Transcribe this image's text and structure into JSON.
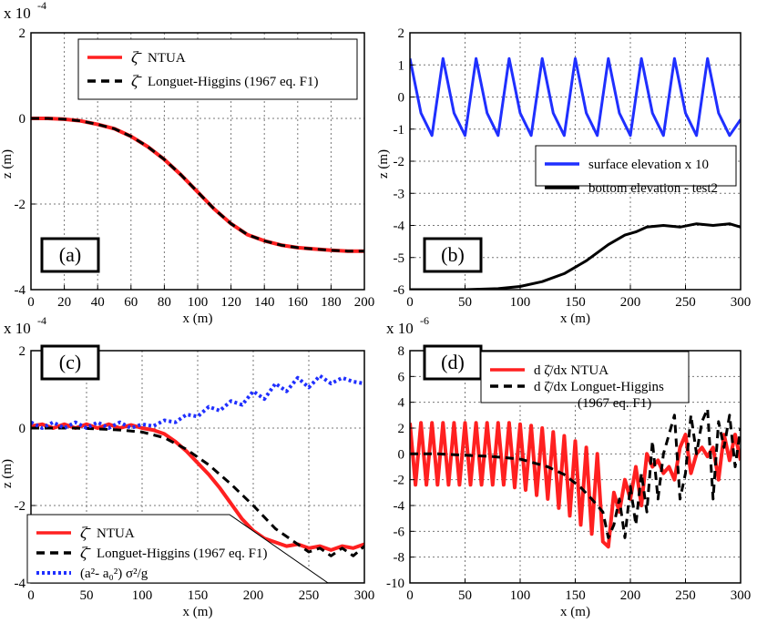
{
  "chart_data": [
    {
      "id": "a",
      "type": "line",
      "panel_label": "(a)",
      "xlabel": "x (m)",
      "ylabel": "z (m)",
      "scale_label": "x 10",
      "scale_exp": "-4",
      "xlim": [
        0,
        200
      ],
      "ylim": [
        -4,
        2
      ],
      "xticks": [
        0,
        20,
        40,
        60,
        80,
        100,
        120,
        140,
        160,
        180,
        200
      ],
      "yticks": [
        -4,
        -2,
        0,
        2
      ],
      "grid": true,
      "legend_position": "top-right",
      "legend": [
        {
          "sym": "ζ̄",
          "text": "NTUA",
          "color": "#ff2020",
          "style": "solid"
        },
        {
          "sym": "ζ̄",
          "text": "Longuet-Higgins (1967 eq. F1)",
          "color": "#000000",
          "style": "dashed"
        }
      ],
      "series": [
        {
          "name": "ζ̄ NTUA",
          "color": "#ff2020",
          "dash": "",
          "width": 4,
          "x": [
            0,
            10,
            20,
            30,
            40,
            50,
            60,
            70,
            80,
            90,
            100,
            110,
            120,
            130,
            140,
            150,
            160,
            170,
            180,
            190,
            200
          ],
          "y": [
            0,
            0,
            -0.02,
            -0.06,
            -0.14,
            -0.24,
            -0.42,
            -0.66,
            -0.96,
            -1.32,
            -1.72,
            -2.12,
            -2.46,
            -2.72,
            -2.86,
            -2.96,
            -3.02,
            -3.05,
            -3.08,
            -3.1,
            -3.1
          ]
        },
        {
          "name": "ζ̄ Longuet-Higgins (1967 eq. F1)",
          "color": "#000000",
          "dash": "9,6",
          "width": 3,
          "x": [
            0,
            10,
            20,
            30,
            40,
            50,
            60,
            70,
            80,
            90,
            100,
            110,
            120,
            130,
            140,
            150,
            160,
            170,
            180,
            190,
            200
          ],
          "y": [
            0,
            0,
            -0.02,
            -0.06,
            -0.14,
            -0.24,
            -0.42,
            -0.66,
            -0.96,
            -1.32,
            -1.72,
            -2.12,
            -2.46,
            -2.72,
            -2.86,
            -2.96,
            -3.02,
            -3.05,
            -3.08,
            -3.1,
            -3.1
          ]
        }
      ]
    },
    {
      "id": "b",
      "type": "line",
      "panel_label": "(b)",
      "xlabel": "x (m)",
      "ylabel": "z (m)",
      "xlim": [
        0,
        300
      ],
      "ylim": [
        -6,
        2
      ],
      "xticks": [
        0,
        50,
        100,
        150,
        200,
        250,
        300
      ],
      "yticks": [
        -6,
        -5,
        -4,
        -3,
        -2,
        -1,
        0,
        1,
        2
      ],
      "grid": true,
      "legend_position": "middle-right",
      "legend": [
        {
          "sym": "",
          "text": "surface elevation x 10",
          "color": "#1f2fff",
          "style": "solid"
        },
        {
          "sym": "",
          "text": "bottom elevation - test2",
          "color": "#000000",
          "style": "solid"
        }
      ],
      "series": [
        {
          "name": "surface elevation x 10",
          "color": "#1f2fff",
          "dash": "",
          "width": 3,
          "x": [
            0,
            10,
            20,
            30,
            40,
            50,
            60,
            70,
            80,
            90,
            100,
            110,
            120,
            130,
            140,
            150,
            160,
            170,
            180,
            190,
            200,
            210,
            220,
            230,
            240,
            250,
            260,
            270,
            280,
            290,
            300
          ],
          "y": [
            1.2,
            -0.5,
            -1.2,
            1.2,
            -0.5,
            -1.2,
            1.2,
            -0.5,
            -1.2,
            1.2,
            -0.5,
            -1.2,
            1.2,
            -0.5,
            -1.2,
            1.2,
            -0.5,
            -1.2,
            1.2,
            -0.5,
            -1.2,
            1.2,
            -0.5,
            -1.2,
            1.2,
            -0.5,
            -1.2,
            1.2,
            -0.5,
            -1.2,
            -0.7
          ]
        },
        {
          "name": "bottom elevation - test2",
          "color": "#000000",
          "dash": "",
          "width": 3,
          "x": [
            0,
            50,
            80,
            100,
            120,
            140,
            160,
            180,
            195,
            205,
            215,
            230,
            245,
            260,
            275,
            290,
            300
          ],
          "y": [
            -6,
            -6,
            -5.97,
            -5.9,
            -5.75,
            -5.5,
            -5.1,
            -4.6,
            -4.3,
            -4.2,
            -4.05,
            -4.0,
            -4.05,
            -3.95,
            -4.0,
            -3.95,
            -4.05
          ]
        }
      ]
    },
    {
      "id": "c",
      "type": "line",
      "panel_label": "(c)",
      "xlabel": "x (m)",
      "ylabel": "z (m)",
      "scale_label": "x 10",
      "scale_exp": "-4",
      "xlim": [
        0,
        300
      ],
      "ylim": [
        -4,
        2
      ],
      "xticks": [
        0,
        50,
        100,
        150,
        200,
        250,
        300
      ],
      "yticks": [
        -4,
        -2,
        0,
        2
      ],
      "grid": true,
      "legend_position": "bottom-left",
      "legend": [
        {
          "sym": "ζ̄",
          "text": "NTUA",
          "color": "#ff2020",
          "style": "solid"
        },
        {
          "sym": "ζ̄",
          "text": "Longuet-Higgins (1967 eq. F1)",
          "color": "#000000",
          "style": "dashed"
        },
        {
          "sym": "",
          "text": "(a²- a₀²) σ²/g",
          "color": "#1f2fff",
          "style": "dotted"
        }
      ],
      "series": [
        {
          "name": "ζ̄ NTUA",
          "color": "#ff2020",
          "dash": "",
          "width": 4,
          "x": [
            0,
            10,
            20,
            30,
            40,
            50,
            60,
            70,
            80,
            90,
            100,
            110,
            120,
            130,
            140,
            150,
            160,
            170,
            180,
            190,
            200,
            210,
            220,
            230,
            240,
            250,
            260,
            270,
            280,
            290,
            300
          ],
          "y": [
            0.05,
            0.1,
            0.0,
            0.1,
            0.0,
            0.1,
            0.0,
            0.1,
            0.0,
            0.08,
            0.0,
            -0.05,
            -0.15,
            -0.35,
            -0.6,
            -0.9,
            -1.2,
            -1.55,
            -1.95,
            -2.35,
            -2.65,
            -2.85,
            -2.95,
            -3.05,
            -3.0,
            -3.1,
            -3.05,
            -3.15,
            -3.05,
            -3.1,
            -3.0
          ]
        },
        {
          "name": "ζ̄ Longuet-Higgins (1967 eq. F1)",
          "color": "#000000",
          "dash": "9,6",
          "width": 3,
          "x": [
            0,
            20,
            40,
            60,
            80,
            100,
            120,
            140,
            160,
            180,
            200,
            220,
            240,
            250,
            260,
            270,
            280,
            290,
            300
          ],
          "y": [
            0,
            0,
            0,
            -0.02,
            -0.05,
            -0.1,
            -0.25,
            -0.55,
            -0.95,
            -1.45,
            -2.0,
            -2.6,
            -3.0,
            -3.2,
            -3.1,
            -3.3,
            -3.1,
            -3.3,
            -3.05
          ]
        },
        {
          "name": "(a²- a₀²) σ²/g",
          "color": "#1f2fff",
          "dash": "3,3",
          "width": 4,
          "x": [
            0,
            10,
            20,
            30,
            40,
            50,
            60,
            70,
            80,
            90,
            100,
            110,
            120,
            130,
            140,
            150,
            160,
            170,
            180,
            190,
            200,
            210,
            220,
            230,
            240,
            250,
            260,
            270,
            280,
            290,
            300
          ],
          "y": [
            0.15,
            0.0,
            0.15,
            0.0,
            0.15,
            0.0,
            0.15,
            0.0,
            0.15,
            0.0,
            0.1,
            0.05,
            0.2,
            0.15,
            0.35,
            0.3,
            0.55,
            0.45,
            0.7,
            0.6,
            0.95,
            0.75,
            1.15,
            0.95,
            1.3,
            1.05,
            1.35,
            1.15,
            1.3,
            1.2,
            1.15
          ]
        }
      ]
    },
    {
      "id": "d",
      "type": "line",
      "panel_label": "(d)",
      "xlabel": "x (m)",
      "ylabel": "",
      "scale_label": "x 10",
      "scale_exp": "-6",
      "xlim": [
        0,
        300
      ],
      "ylim": [
        -10,
        8
      ],
      "xticks": [
        0,
        50,
        100,
        150,
        200,
        250,
        300
      ],
      "yticks": [
        -10,
        -8,
        -6,
        -4,
        -2,
        0,
        2,
        4,
        6,
        8
      ],
      "grid": true,
      "legend_position": "top",
      "legend": [
        {
          "sym": "",
          "text": "d ζ̄/dx NTUA",
          "color": "#ff2020",
          "style": "solid"
        },
        {
          "sym": "",
          "text": "d ζ̄/dx  Longuet-Higgins",
          "text2": "(1967 eq. F1)",
          "color": "#000000",
          "style": "dashed"
        }
      ],
      "series": [
        {
          "name": "d ζ̄/dx NTUA",
          "color": "#ff2020",
          "dash": "",
          "width": 4,
          "x": [
            0,
            5,
            10,
            15,
            20,
            25,
            30,
            35,
            40,
            45,
            50,
            55,
            60,
            65,
            70,
            75,
            80,
            85,
            90,
            95,
            100,
            105,
            110,
            115,
            120,
            125,
            130,
            135,
            140,
            145,
            150,
            155,
            160,
            165,
            170,
            175,
            180,
            185,
            190,
            195,
            200,
            205,
            210,
            215,
            220,
            225,
            230,
            235,
            240,
            245,
            250,
            255,
            260,
            265,
            270,
            275,
            280,
            285,
            290,
            295,
            300
          ],
          "y": [
            2.4,
            -2.4,
            2.4,
            -2.4,
            2.4,
            -2.4,
            2.4,
            -2.4,
            2.4,
            -2.4,
            2.4,
            -2.4,
            2.4,
            -2.4,
            2.4,
            -2.4,
            2.4,
            -2.4,
            2.4,
            -2.6,
            2.3,
            -2.8,
            2.2,
            -3.2,
            2.0,
            -3.5,
            1.7,
            -4.2,
            1.4,
            -4.8,
            1.0,
            -5.5,
            0.5,
            -6.2,
            0.0,
            -6.8,
            -7.2,
            -3.0,
            -4.5,
            -2.0,
            -3.5,
            -1.0,
            -4.0,
            0.0,
            -1.0,
            -0.5,
            -1.5,
            -1.0,
            -2.0,
            0.5,
            1.5,
            -1.5,
            0.0,
            0.5,
            -0.2,
            0.5,
            -2.0,
            1.5,
            -0.5,
            1.5,
            -0.5
          ]
        },
        {
          "name": "d ζ̄/dx Longuet-Higgins (1967 eq. F1)",
          "color": "#000000",
          "dash": "9,6",
          "width": 3,
          "x": [
            0,
            25,
            50,
            75,
            100,
            125,
            140,
            155,
            165,
            175,
            180,
            185,
            190,
            195,
            200,
            205,
            210,
            215,
            220,
            225,
            230,
            235,
            240,
            245,
            250,
            255,
            260,
            265,
            270,
            275,
            280,
            285,
            290,
            295,
            300
          ],
          "y": [
            0,
            0,
            -0.1,
            -0.2,
            -0.4,
            -1.0,
            -1.6,
            -2.6,
            -3.5,
            -4.5,
            -6.5,
            -5.5,
            -3.5,
            -6.5,
            -2.5,
            -5.5,
            -1.5,
            -4.5,
            1.0,
            -3.5,
            0.0,
            1.5,
            3.0,
            -3.5,
            -1.5,
            3.0,
            0.0,
            2.5,
            3.5,
            -3.5,
            2.5,
            0.5,
            3.0,
            -1.0,
            2.0
          ]
        }
      ]
    }
  ]
}
